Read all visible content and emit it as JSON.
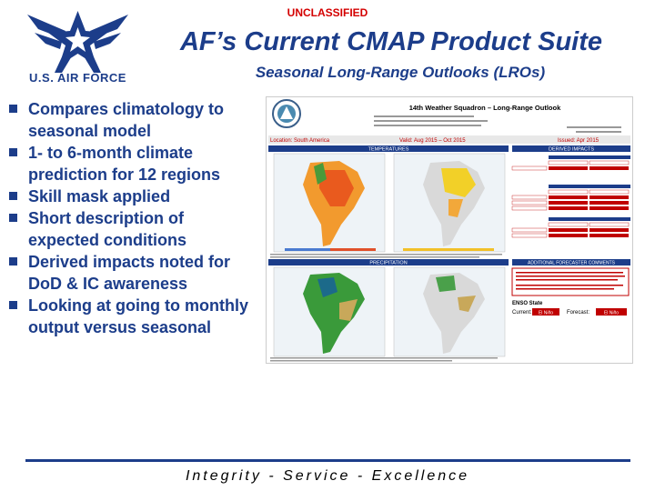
{
  "header": {
    "classification": "UNCLASSIFIED",
    "title": "AF’s Current CMAP Product Suite",
    "subtitle": "Seasonal Long-Range Outlooks (LROs)"
  },
  "logo": {
    "text": "U.S. AIR FORCE",
    "icon": "air-force-wings-logo",
    "color": "#1c3d8a"
  },
  "bullets": [
    "Compares climatology to seasonal model",
    "1- to 6-month climate prediction for 12 regions",
    "Skill mask applied",
    "Short description of expected conditions",
    "Derived impacts noted for DoD & IC awareness",
    "Looking at going to monthly output versus seasonal"
  ],
  "product": {
    "title": "14th Weather Squadron – Long-Range Outlook",
    "location": "Location: South America",
    "valid": "Valid: Aug 2015 – Oct 2015",
    "issued": "Issued: Apr 2015",
    "temperatures_header": "TEMPERATURES",
    "precipitation_header": "PRECIPITATION",
    "derived_impacts_header": "DERIVED IMPACTS",
    "forecaster_comments_header": "ADDITIONAL FORECASTER COMMENTS",
    "enso_label": "ENSO State",
    "current_label": "Current:",
    "forecast_label": "Forecast:",
    "enso_current": "El Niño",
    "enso_forecast": "El Niño"
  },
  "footer": {
    "motto": "Integrity - Service - Excellence"
  },
  "colors": {
    "navy": "#1c3d8a",
    "classification_red": "#d40000",
    "bar_red": "#c00000"
  }
}
